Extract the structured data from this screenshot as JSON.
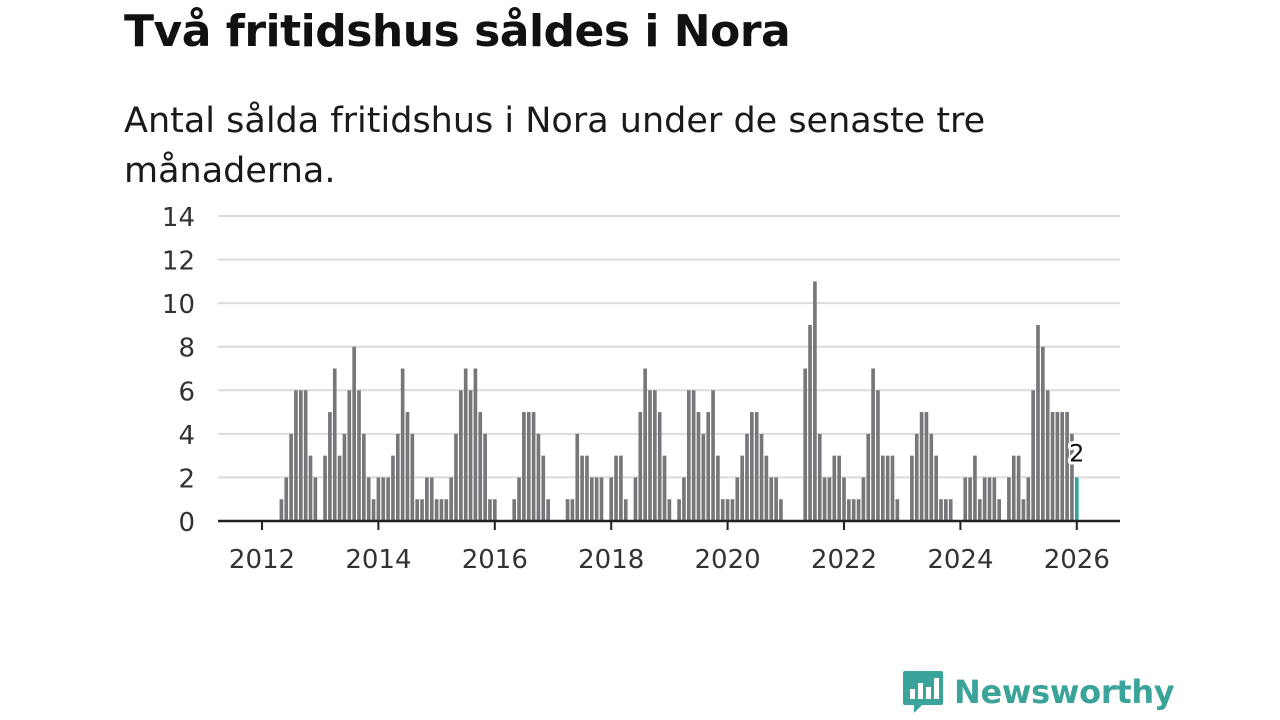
{
  "chart_data": {
    "type": "bar",
    "title": "Två fritidshus såldes i Nora",
    "subtitle": "Antal sålda fritidshus i Nora under de senaste tre månaderna.",
    "xlabel": "",
    "ylabel": "",
    "ylim": [
      0,
      14
    ],
    "yticks": [
      0,
      2,
      4,
      6,
      8,
      10,
      12,
      14
    ],
    "xlim": [
      2011.25,
      2026.7
    ],
    "xticks": [
      2012,
      2014,
      2016,
      2018,
      2020,
      2022,
      2024,
      2026
    ],
    "grid": true,
    "start_year": 2012,
    "start_month": 1,
    "values": [
      0,
      0,
      0,
      0,
      1,
      2,
      4,
      6,
      6,
      6,
      3,
      2,
      0,
      3,
      5,
      7,
      3,
      4,
      6,
      8,
      6,
      4,
      2,
      1,
      2,
      2,
      2,
      3,
      4,
      7,
      5,
      4,
      1,
      1,
      2,
      2,
      1,
      1,
      1,
      2,
      4,
      6,
      7,
      6,
      7,
      5,
      4,
      1,
      1,
      0,
      0,
      0,
      1,
      2,
      5,
      5,
      5,
      4,
      3,
      1,
      0,
      0,
      0,
      1,
      1,
      4,
      3,
      3,
      2,
      2,
      2,
      0,
      2,
      3,
      3,
      1,
      0,
      2,
      5,
      7,
      6,
      6,
      5,
      3,
      1,
      0,
      1,
      2,
      6,
      6,
      5,
      4,
      5,
      6,
      3,
      1,
      1,
      1,
      2,
      3,
      4,
      5,
      5,
      4,
      3,
      2,
      2,
      1,
      0,
      0,
      0,
      0,
      7,
      9,
      11,
      4,
      2,
      2,
      3,
      3,
      2,
      1,
      1,
      1,
      2,
      4,
      7,
      6,
      3,
      3,
      3,
      1,
      0,
      0,
      3,
      4,
      5,
      5,
      4,
      3,
      1,
      1,
      1,
      0,
      0,
      2,
      2,
      3,
      1,
      2,
      2,
      2,
      1,
      0,
      2,
      3,
      3,
      1,
      2,
      6,
      9,
      8,
      6,
      5,
      5,
      5,
      5,
      4,
      2
    ],
    "highlight_index": 168,
    "highlight_label": "2",
    "bar_color": "#77777b",
    "highlight_color": "#2fa59a"
  },
  "brand": {
    "name": "Newsworthy",
    "color": "#3aa39a"
  }
}
